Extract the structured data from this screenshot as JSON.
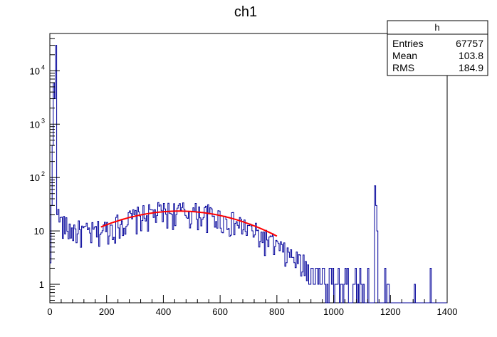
{
  "chart_data": {
    "type": "histogram",
    "title": "ch1",
    "xlabel": "",
    "ylabel": "",
    "xlim": [
      0,
      1400
    ],
    "ylim": [
      0.45,
      50000
    ],
    "yscale": "log",
    "grid": false,
    "line_color": "#000099",
    "fit_color": "#ff0000",
    "x_ticks": [
      {
        "value": 0,
        "label": "0"
      },
      {
        "value": 200,
        "label": "200"
      },
      {
        "value": 400,
        "label": "400"
      },
      {
        "value": 600,
        "label": "600"
      },
      {
        "value": 800,
        "label": "800"
      },
      {
        "value": 1000,
        "label": "1000"
      },
      {
        "value": 1200,
        "label": "1200"
      },
      {
        "value": 1400,
        "label": "1400"
      }
    ],
    "y_ticks": [
      {
        "value": 1,
        "label": "1",
        "exp": ""
      },
      {
        "value": 10,
        "label": "10",
        "exp": ""
      },
      {
        "value": 100,
        "label": "10",
        "exp": "2"
      },
      {
        "value": 1000,
        "label": "10",
        "exp": "3"
      },
      {
        "value": 10000,
        "label": "10",
        "exp": "4"
      }
    ],
    "histogram": {
      "name": "h",
      "bin_width": 4,
      "noise_seed": 17,
      "profile": [
        [
          0,
          2
        ],
        [
          4,
          30
        ],
        [
          8,
          400
        ],
        [
          12,
          6000
        ],
        [
          16,
          3000
        ],
        [
          20,
          200
        ],
        [
          24,
          40
        ],
        [
          28,
          18
        ],
        [
          40,
          14
        ],
        [
          60,
          11
        ],
        [
          100,
          10
        ],
        [
          140,
          9
        ],
        [
          200,
          11
        ],
        [
          260,
          15
        ],
        [
          320,
          19
        ],
        [
          380,
          22
        ],
        [
          440,
          23
        ],
        [
          500,
          22
        ],
        [
          560,
          20
        ],
        [
          620,
          16
        ],
        [
          680,
          12
        ],
        [
          740,
          8
        ],
        [
          780,
          6
        ],
        [
          820,
          4
        ],
        [
          880,
          2.5
        ],
        [
          940,
          1.5
        ],
        [
          1000,
          1
        ],
        [
          1060,
          0.8
        ],
        [
          1120,
          0.7
        ],
        [
          1160,
          0.3
        ],
        [
          1400,
          0
        ]
      ],
      "spikes": [
        {
          "x": 20,
          "y": 30000
        },
        {
          "x": 1144,
          "y": 70
        },
        {
          "x": 1148,
          "y": 30
        },
        {
          "x": 1152,
          "y": 10
        }
      ]
    },
    "fit": {
      "type": "gaussian",
      "amplitude": 23.5,
      "mean": 455,
      "sigma": 235,
      "x_range": [
        180,
        800
      ]
    },
    "stats_box": {
      "name": "h",
      "entries_label": "Entries",
      "entries": "67757",
      "mean_label": "Mean",
      "mean": "103.8",
      "rms_label": "RMS",
      "rms": "184.9"
    }
  }
}
